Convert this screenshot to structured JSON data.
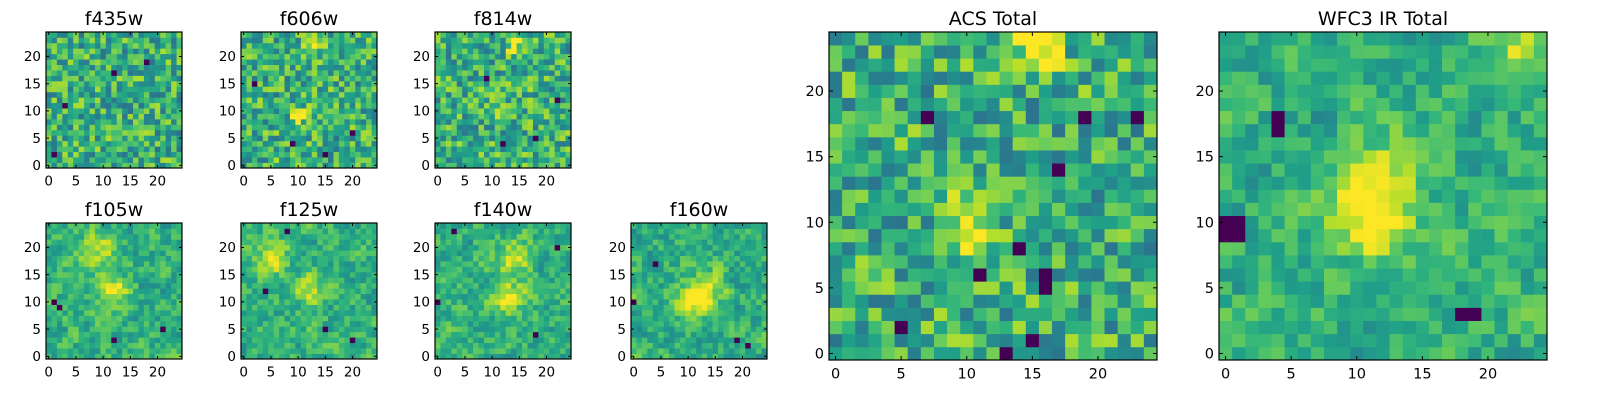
{
  "chart_data": [
    {
      "type": "heatmap",
      "title": "f435w",
      "pixel_grid": [
        25,
        25
      ],
      "x_ticks": [
        "0",
        "5",
        "10",
        "15",
        "20"
      ],
      "y_ticks": [
        "0",
        "5",
        "10",
        "15",
        "20"
      ],
      "xlim": [
        -0.5,
        24.5
      ],
      "ylim": [
        -0.5,
        24.5
      ],
      "colormap": "viridis",
      "pattern": "noisy field, no distinct source; a few dark pixels",
      "dark_pixels": [
        [
          12,
          17
        ],
        [
          18,
          19
        ],
        [
          3,
          11
        ],
        [
          1,
          2
        ]
      ],
      "bright_spots": []
    },
    {
      "type": "heatmap",
      "title": "f606w",
      "pixel_grid": [
        25,
        25
      ],
      "x_ticks": [
        "0",
        "5",
        "10",
        "15",
        "20"
      ],
      "y_ticks": [
        "0",
        "5",
        "10",
        "15",
        "20"
      ],
      "xlim": [
        -0.5,
        24.5
      ],
      "ylim": [
        -0.5,
        24.5
      ],
      "colormap": "viridis",
      "pattern": "noisy field with faint bright column near center",
      "dark_pixels": [
        [
          2,
          15
        ],
        [
          20,
          6
        ],
        [
          9,
          4
        ],
        [
          15,
          2
        ]
      ],
      "bright_spots": [
        [
          13,
          22
        ],
        [
          10,
          9
        ]
      ]
    },
    {
      "type": "heatmap",
      "title": "f814w",
      "pixel_grid": [
        25,
        25
      ],
      "x_ticks": [
        "0",
        "5",
        "10",
        "15",
        "20"
      ],
      "y_ticks": [
        "0",
        "5",
        "10",
        "15",
        "20"
      ],
      "xlim": [
        -0.5,
        24.5
      ],
      "ylim": [
        -0.5,
        24.5
      ],
      "colormap": "viridis",
      "pattern": "noisy field with faint central source",
      "dark_pixels": [
        [
          18,
          5
        ],
        [
          9,
          16
        ],
        [
          12,
          4
        ],
        [
          22,
          12
        ]
      ],
      "bright_spots": [
        [
          14,
          22
        ],
        [
          12,
          10
        ]
      ]
    },
    {
      "type": "heatmap",
      "title": "f105w",
      "pixel_grid": [
        25,
        25
      ],
      "x_ticks": [
        "0",
        "5",
        "10",
        "15",
        "20"
      ],
      "y_ticks": [
        "0",
        "5",
        "10",
        "15",
        "20"
      ],
      "xlim": [
        -0.5,
        24.5
      ],
      "ylim": [
        -0.5,
        24.5
      ],
      "colormap": "viridis",
      "pattern": "smoothed noisy field with broad bright central blob",
      "dark_pixels": [
        [
          1,
          10
        ],
        [
          2,
          9
        ],
        [
          21,
          5
        ],
        [
          12,
          3
        ]
      ],
      "bright_spots": [
        [
          12,
          12
        ],
        [
          9,
          20
        ]
      ]
    },
    {
      "type": "heatmap",
      "title": "f125w",
      "pixel_grid": [
        25,
        25
      ],
      "x_ticks": [
        "0",
        "5",
        "10",
        "15",
        "20"
      ],
      "y_ticks": [
        "0",
        "5",
        "10",
        "15",
        "20"
      ],
      "xlim": [
        -0.5,
        24.5
      ],
      "ylim": [
        -0.5,
        24.5
      ],
      "colormap": "viridis",
      "pattern": "smoothed noisy field with bright center",
      "dark_pixels": [
        [
          8,
          23
        ],
        [
          20,
          3
        ],
        [
          4,
          12
        ],
        [
          15,
          5
        ]
      ],
      "bright_spots": [
        [
          12,
          12
        ],
        [
          5,
          18
        ]
      ]
    },
    {
      "type": "heatmap",
      "title": "f140w",
      "pixel_grid": [
        25,
        25
      ],
      "x_ticks": [
        "0",
        "5",
        "10",
        "15",
        "20"
      ],
      "y_ticks": [
        "0",
        "5",
        "10",
        "15",
        "20"
      ],
      "xlim": [
        -0.5,
        24.5
      ],
      "ylim": [
        -0.5,
        24.5
      ],
      "colormap": "viridis",
      "pattern": "smoothed field, bright central source",
      "dark_pixels": [
        [
          0,
          10
        ],
        [
          3,
          23
        ],
        [
          22,
          20
        ],
        [
          18,
          4
        ]
      ],
      "bright_spots": [
        [
          13,
          11
        ],
        [
          14,
          18
        ]
      ]
    },
    {
      "type": "heatmap",
      "title": "f160w",
      "pixel_grid": [
        25,
        25
      ],
      "x_ticks": [
        "0",
        "5",
        "10",
        "15",
        "20"
      ],
      "y_ticks": [
        "0",
        "5",
        "10",
        "15",
        "20"
      ],
      "xlim": [
        -0.5,
        24.5
      ],
      "ylim": [
        -0.5,
        24.5
      ],
      "colormap": "viridis",
      "pattern": "smoothed field, compact bright source near center",
      "dark_pixels": [
        [
          0,
          10
        ],
        [
          4,
          17
        ],
        [
          19,
          3
        ],
        [
          21,
          2
        ]
      ],
      "bright_spots": [
        [
          13,
          12
        ],
        [
          11,
          10
        ]
      ]
    },
    {
      "type": "heatmap",
      "title": "ACS Total",
      "pixel_grid": [
        25,
        25
      ],
      "x_ticks": [
        "0",
        "5",
        "10",
        "15",
        "20"
      ],
      "y_ticks": [
        "0",
        "5",
        "10",
        "15",
        "20"
      ],
      "xlim": [
        -0.5,
        24.5
      ],
      "ylim": [
        -0.5,
        24.5
      ],
      "colormap": "viridis",
      "pattern": "noisy field with faint bright streak top-center and bright pixel near (10,9)",
      "dark_pixels": [
        [
          16,
          6
        ],
        [
          16,
          5
        ],
        [
          15,
          1
        ],
        [
          17,
          14
        ],
        [
          14,
          8
        ],
        [
          19,
          18
        ],
        [
          23,
          18
        ],
        [
          7,
          18
        ],
        [
          5,
          2
        ],
        [
          11,
          6
        ],
        [
          13,
          0
        ]
      ],
      "bright_spots": [
        [
          15,
          24
        ],
        [
          16,
          23
        ],
        [
          10,
          9
        ],
        [
          10,
          11
        ]
      ]
    },
    {
      "type": "heatmap",
      "title": "WFC3 IR Total",
      "pixel_grid": [
        25,
        25
      ],
      "x_ticks": [
        "0",
        "5",
        "10",
        "15",
        "20"
      ],
      "y_ticks": [
        "0",
        "5",
        "10",
        "15",
        "20"
      ],
      "xlim": [
        -0.5,
        24.5
      ],
      "ylim": [
        -0.5,
        24.5
      ],
      "colormap": "viridis",
      "pattern": "smoothed field, extended bright source centered near (12,12)",
      "dark_pixels": [
        [
          0,
          10
        ],
        [
          1,
          10
        ],
        [
          0,
          9
        ],
        [
          1,
          9
        ],
        [
          4,
          18
        ],
        [
          4,
          17
        ],
        [
          19,
          3
        ],
        [
          18,
          3
        ]
      ],
      "bright_spots": [
        [
          12,
          13
        ],
        [
          11,
          10
        ],
        [
          23,
          24
        ]
      ]
    }
  ]
}
